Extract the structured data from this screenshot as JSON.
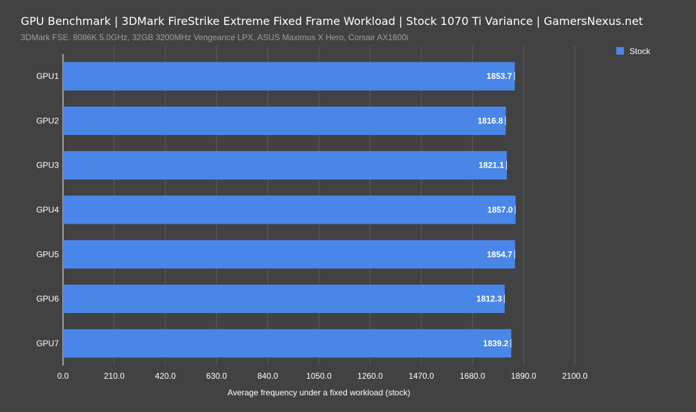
{
  "title": "GPU Benchmark | 3DMark FireStrike Extreme Fixed Frame Workload | Stock 1070 Ti Variance | GamersNexus.net",
  "subtitle": "3DMark FSE. 8086K 5.0GHz, 32GB 3200MHz Vengeance LPX, ASUS Maximus X Hero, Corsair AX1600i",
  "colors": {
    "background": "#424242",
    "bar": "#4a86e8",
    "gridline": "#5c5c5c",
    "text": "#ffffff",
    "subtitle": "#9e9e9e"
  },
  "chart_data": {
    "type": "bar",
    "orientation": "horizontal",
    "title": "GPU Benchmark | 3DMark FireStrike Extreme Fixed Frame Workload | Stock 1070 Ti Variance | GamersNexus.net",
    "subtitle": "3DMark FSE. 8086K 5.0GHz, 32GB 3200MHz Vengeance LPX, ASUS Maximus X Hero, Corsair AX1600i",
    "categories": [
      "GPU1",
      "GPU2",
      "GPU3",
      "GPU4",
      "GPU5",
      "GPU6",
      "GPU7"
    ],
    "series": [
      {
        "name": "Stock",
        "values": [
          1853.7,
          1816.8,
          1821.1,
          1857.0,
          1854.7,
          1812.3,
          1839.2
        ]
      }
    ],
    "value_labels": [
      "1853.7",
      "1816.8",
      "1821.1",
      "1857.0",
      "1854.7",
      "1812.3",
      "1839.2"
    ],
    "xlabel": "Average frequency under a fixed workload (stock)",
    "ylabel": "",
    "xlim": [
      0,
      2100
    ],
    "xticks": [
      "0.0",
      "210.0",
      "420.0",
      "630.0",
      "840.0",
      "1050.0",
      "1260.0",
      "1470.0",
      "1680.0",
      "1890.0",
      "2100.0"
    ],
    "grid": true,
    "legend": "top-right"
  }
}
